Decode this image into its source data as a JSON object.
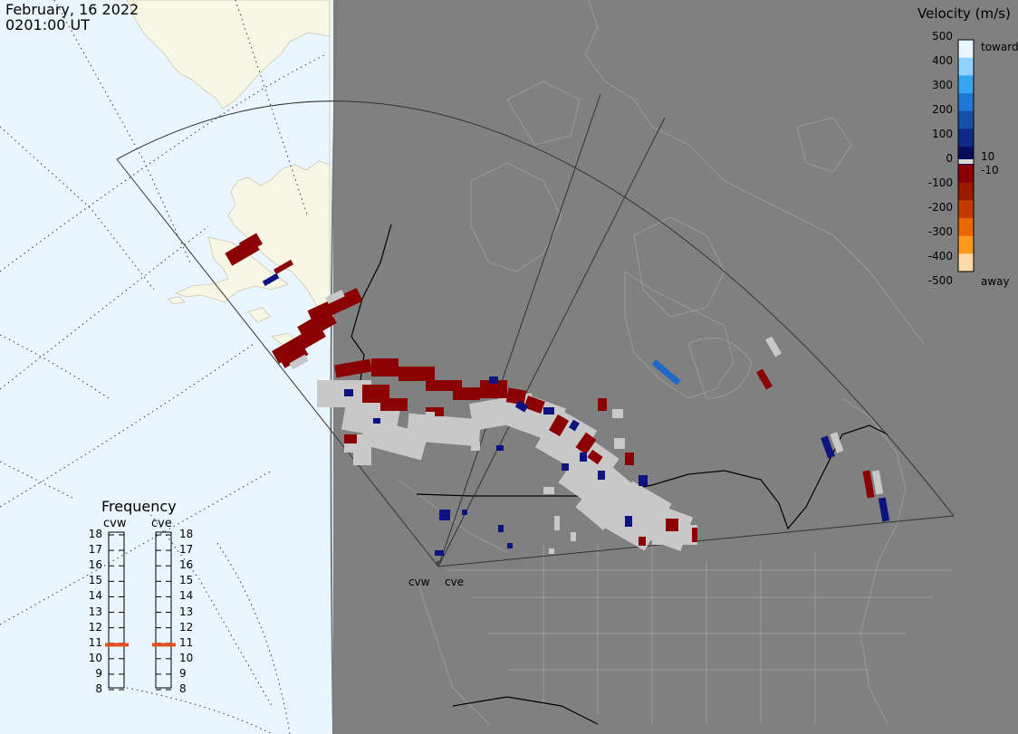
{
  "title": {
    "date": "February, 16 2022",
    "time": "0201:00 UT"
  },
  "colorbar": {
    "title": "Velocity (m/s)",
    "ticks": [
      "500",
      "400",
      "300",
      "200",
      "100",
      "0",
      "-100",
      "-200",
      "-300",
      "-400",
      "-500"
    ],
    "toward_label": "toward",
    "away_label": "away",
    "pos_limit_label": "10",
    "neg_limit_label": "-10",
    "colors_top_to_bottom": [
      "#eaf6ff",
      "#8fd2ff",
      "#36a6f2",
      "#1f78d4",
      "#1450a8",
      "#0c2a86",
      "#050d5c",
      "#8b0000",
      "#9a1a00",
      "#c23a00",
      "#ea6600",
      "#ff9a1e",
      "#ffd9a8"
    ]
  },
  "radars": [
    {
      "code": "cvw",
      "frequency_mhz": 10.9
    },
    {
      "code": "cve",
      "frequency_mhz": 10.9
    }
  ],
  "frequency_panel": {
    "title": "Frequency",
    "scale": [
      "18",
      "17",
      "16",
      "15",
      "14",
      "13",
      "12",
      "11",
      "10",
      "9",
      "8"
    ],
    "marker_color": "#e6501e"
  },
  "map_colors": {
    "ocean": "#e9f6ff",
    "land_day": "#f8f6e4",
    "night": "#808080",
    "ground_scatter": "#c8c8c8",
    "toward": "#0c1480",
    "away": "#8b0000"
  }
}
